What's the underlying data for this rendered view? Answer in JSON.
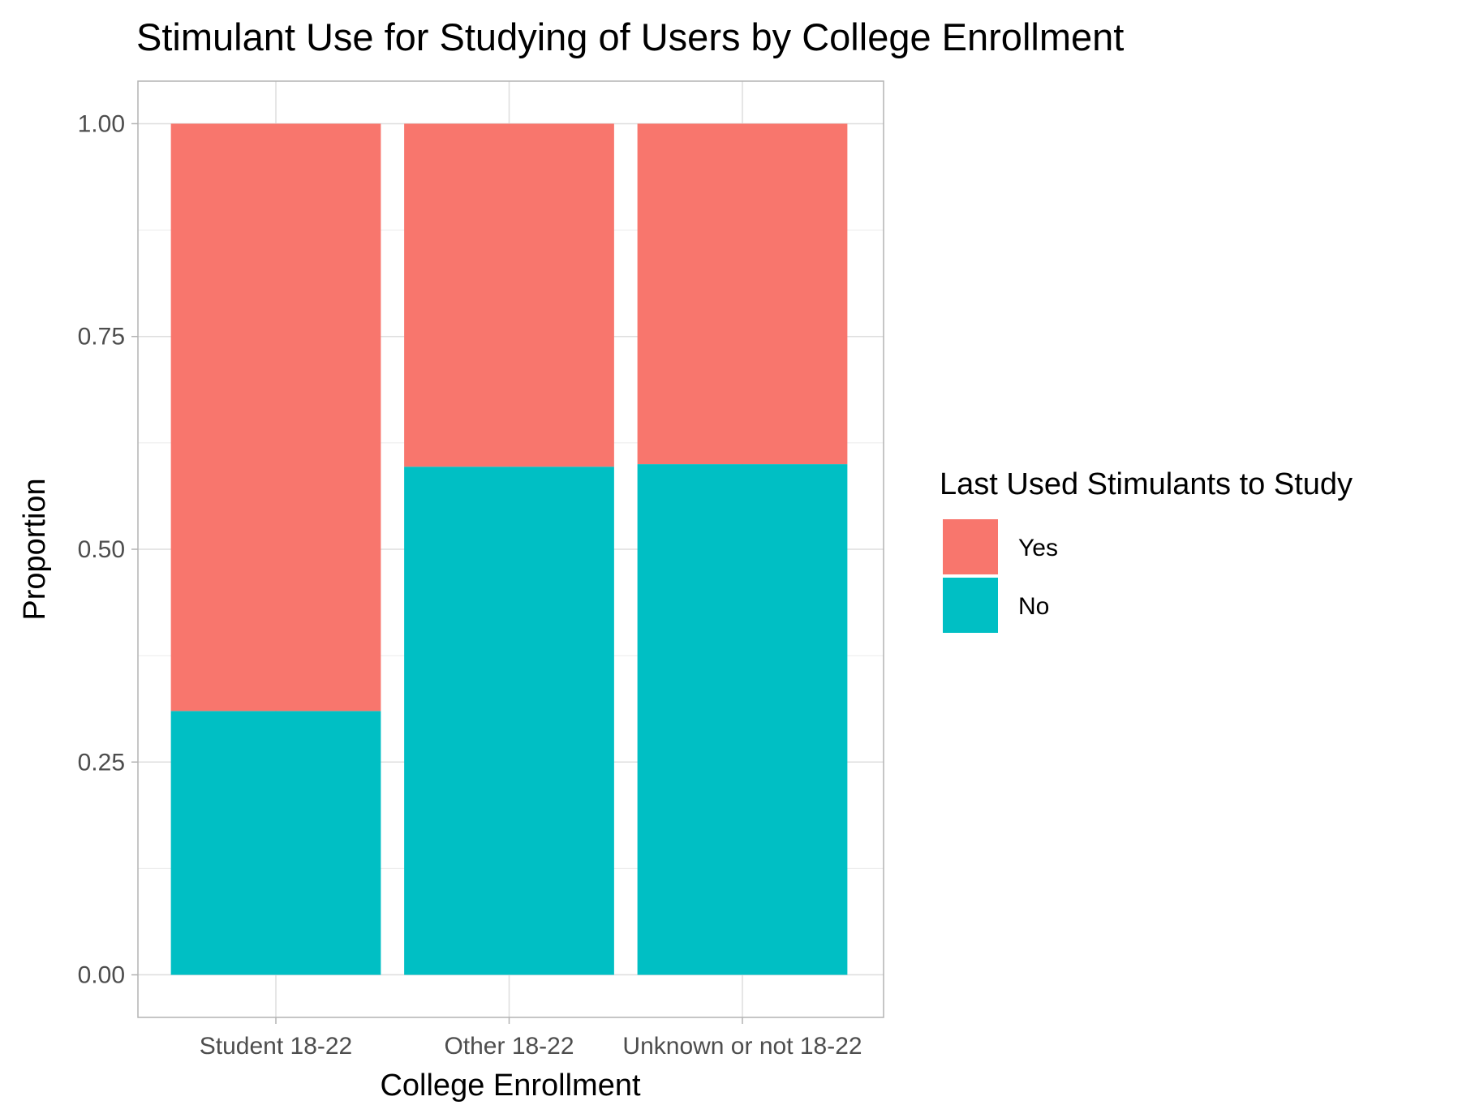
{
  "chart_data": {
    "type": "bar",
    "stacked": true,
    "title": "Stimulant Use for Studying of Users by College Enrollment",
    "xlabel": "College Enrollment",
    "ylabel": "Proportion",
    "categories": [
      "Student 18-22",
      "Other 18-22",
      "Unknown or not 18-22"
    ],
    "series": [
      {
        "name": "No",
        "color": "#00BFC4",
        "values": [
          0.31,
          0.597,
          0.6
        ]
      },
      {
        "name": "Yes",
        "color": "#F8766D",
        "values": [
          0.69,
          0.403,
          0.4
        ]
      }
    ],
    "ylim": [
      -0.05,
      1.05
    ],
    "yticks": [
      0.0,
      0.25,
      0.5,
      0.75,
      1.0
    ],
    "ytick_labels": [
      "0.00",
      "0.25",
      "0.50",
      "0.75",
      "1.00"
    ],
    "grid": true,
    "legend": {
      "title": "Last Used Stimulants to Study",
      "position": "right",
      "entries": [
        {
          "label": "Yes",
          "color": "#F8766D"
        },
        {
          "label": "No",
          "color": "#00BFC4"
        }
      ]
    }
  }
}
